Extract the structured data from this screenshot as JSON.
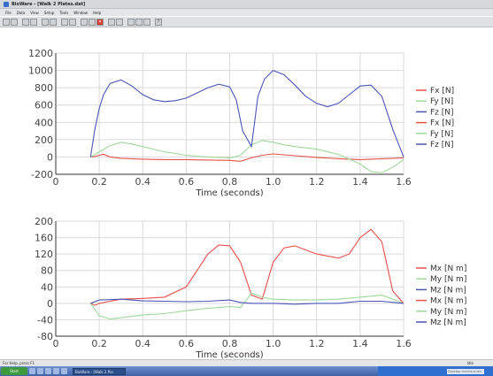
{
  "window": {
    "title": "BioWare - [Walk 2 Plates.dat]"
  },
  "menu": [
    "File",
    "Data",
    "View",
    "Setup",
    "Tools",
    "Window",
    "Help"
  ],
  "toolbar_icons": [
    "new-icon",
    "save-icon",
    "print-icon",
    "copy-icon",
    "channel-icon",
    "channel-icon",
    "graph-icon",
    "graph-icon",
    "grid-icon",
    "record-icon",
    "stop-icon",
    "zoom-icon",
    "zoom-out-icon",
    "layout-icon",
    "layout-icon",
    "settings-icon",
    "help-icon"
  ],
  "status": {
    "left": "For Help, press F1",
    "right": "Idle"
  },
  "taskbar": {
    "start_label": "Start",
    "task_label": "BioWare - [Walk 2 Pla",
    "search_placeholder": "Desktop durchsuchen",
    "clock": ""
  },
  "chart_data": [
    {
      "type": "line",
      "title": "",
      "xlabel": "Time (seconds)",
      "ylabel": "",
      "xlim": [
        0,
        1.6
      ],
      "ylim": [
        -200,
        1200
      ],
      "xticks": [
        "0",
        "0.2",
        "0.4",
        "0.6",
        "0.8",
        "1.0",
        "1.2",
        "1.4",
        "1.6"
      ],
      "yticks": [
        "-200",
        "0",
        "200",
        "400",
        "600",
        "800",
        "1000",
        "1200"
      ],
      "grid": true,
      "legend_position": "right",
      "series": [
        {
          "name": "Fx [N]",
          "color": "#e8504a",
          "x": [
            0.16,
            0.18,
            0.2,
            0.22,
            0.25,
            0.3,
            0.4,
            0.5,
            0.6,
            0.7,
            0.8,
            0.85,
            0.9,
            0.95,
            1.0,
            1.1,
            1.2,
            1.3,
            1.4,
            1.5,
            1.6
          ],
          "y": [
            0,
            5,
            20,
            30,
            0,
            -15,
            -25,
            -30,
            -30,
            -35,
            -40,
            -50,
            -10,
            20,
            35,
            15,
            -5,
            -20,
            -30,
            -20,
            -10
          ]
        },
        {
          "name": "Fy [N]",
          "color": "#9fd89a",
          "x": [
            0.16,
            0.2,
            0.25,
            0.3,
            0.35,
            0.4,
            0.5,
            0.6,
            0.7,
            0.8,
            0.85,
            0.9,
            0.95,
            1.0,
            1.05,
            1.1,
            1.2,
            1.3,
            1.4,
            1.45,
            1.5,
            1.55,
            1.6
          ],
          "y": [
            0,
            60,
            130,
            170,
            150,
            120,
            60,
            20,
            0,
            -10,
            20,
            140,
            190,
            170,
            140,
            120,
            90,
            30,
            -80,
            -170,
            -180,
            -120,
            -30
          ]
        },
        {
          "name": "Fz [N]",
          "color": "#4a55b8",
          "x": [
            0.16,
            0.18,
            0.2,
            0.22,
            0.25,
            0.3,
            0.35,
            0.4,
            0.45,
            0.5,
            0.55,
            0.6,
            0.65,
            0.7,
            0.75,
            0.8,
            0.83,
            0.86,
            0.9,
            0.93,
            0.96,
            1.0,
            1.05,
            1.1,
            1.15,
            1.2,
            1.25,
            1.3,
            1.35,
            1.4,
            1.45,
            1.5,
            1.55,
            1.6
          ],
          "y": [
            0,
            320,
            560,
            720,
            850,
            890,
            820,
            720,
            660,
            640,
            650,
            680,
            740,
            800,
            840,
            810,
            660,
            300,
            120,
            700,
            900,
            1000,
            950,
            830,
            700,
            620,
            580,
            620,
            720,
            820,
            830,
            700,
            320,
            0
          ]
        }
      ]
    },
    {
      "type": "line",
      "title": "",
      "xlabel": "Time (seconds)",
      "ylabel": "",
      "xlim": [
        0,
        1.6
      ],
      "ylim": [
        -80,
        200
      ],
      "xticks": [
        "0",
        "0.2",
        "0.4",
        "0.6",
        "0.8",
        "1.0",
        "1.2",
        "1.4",
        "1.6"
      ],
      "yticks": [
        "-80",
        "-40",
        "0",
        "40",
        "80",
        "120",
        "160",
        "200"
      ],
      "grid": true,
      "legend_position": "right",
      "series": [
        {
          "name": "Mx [N m]",
          "color": "#e8504a",
          "x": [
            0.16,
            0.18,
            0.2,
            0.25,
            0.3,
            0.4,
            0.5,
            0.6,
            0.65,
            0.7,
            0.75,
            0.8,
            0.85,
            0.9,
            0.95,
            1.0,
            1.05,
            1.1,
            1.2,
            1.3,
            1.35,
            1.4,
            1.45,
            1.5,
            1.55,
            1.6
          ],
          "y": [
            0,
            -5,
            0,
            5,
            10,
            12,
            15,
            40,
            80,
            120,
            142,
            140,
            100,
            20,
            10,
            100,
            135,
            140,
            120,
            110,
            120,
            160,
            180,
            150,
            30,
            0
          ]
        },
        {
          "name": "My [N m]",
          "color": "#9fd89a",
          "x": [
            0.16,
            0.2,
            0.25,
            0.3,
            0.4,
            0.5,
            0.6,
            0.7,
            0.8,
            0.85,
            0.88,
            0.9,
            0.95,
            1.0,
            1.1,
            1.2,
            1.3,
            1.4,
            1.5,
            1.6
          ],
          "y": [
            0,
            -30,
            -38,
            -35,
            -28,
            -25,
            -18,
            -12,
            -8,
            -10,
            10,
            25,
            15,
            10,
            8,
            8,
            10,
            15,
            20,
            0
          ]
        },
        {
          "name": "Mz [N m]",
          "color": "#4a55b8",
          "x": [
            0.16,
            0.2,
            0.3,
            0.4,
            0.5,
            0.6,
            0.7,
            0.8,
            0.85,
            0.9,
            1.0,
            1.1,
            1.2,
            1.3,
            1.4,
            1.5,
            1.6
          ],
          "y": [
            0,
            8,
            10,
            6,
            5,
            4,
            5,
            8,
            2,
            0,
            0,
            -2,
            0,
            0,
            5,
            5,
            0
          ]
        }
      ]
    }
  ]
}
